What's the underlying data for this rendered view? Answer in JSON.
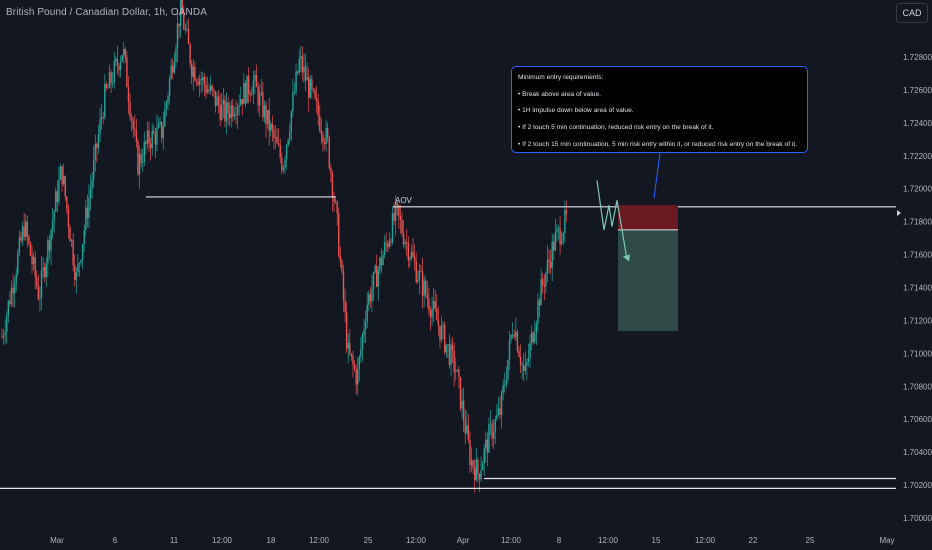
{
  "header": {
    "symbol_title": "British Pound / Canadian Dollar, 1h, OANDA",
    "currency_button": "CAD"
  },
  "annotations": {
    "aov_label": "AOV",
    "note_lines": [
      "Minimum entry requirements:",
      "• Break above area of value.",
      "• 1H impulse down below area of value.",
      "• If 2 touch 5 min continuation, reduced risk entry on the break of it.",
      "• If 2 touch 15 min continuation, 5 min risk entry within it, or reduced risk entry on the break of it."
    ]
  },
  "colors": {
    "background": "#131722",
    "up": "#26a69a",
    "down": "#ef5350",
    "stop_zone": "#6b1a22",
    "target_zone": "#2e4a47",
    "note_border": "#2962ff",
    "path_arrow": "#7ec7b3"
  },
  "chart_data": {
    "type": "candlestick",
    "title": "British Pound / Canadian Dollar, 1h, OANDA",
    "x_tick_labels": [
      "Mar",
      "6",
      "11",
      "12:00",
      "18",
      "12:00",
      "25",
      "12:00",
      "Apr",
      "12:00",
      "8",
      "12:00",
      "15",
      "12:00",
      "22",
      "25",
      "May"
    ],
    "y_tick_labels": [
      "1.70000",
      "1.70200",
      "1.70400",
      "1.70600",
      "1.70800",
      "1.71000",
      "1.71200",
      "1.71400",
      "1.71600",
      "1.71800",
      "1.72000",
      "1.72200",
      "1.72400",
      "1.72600",
      "1.72800"
    ],
    "ylim": [
      1.6995,
      1.7295
    ],
    "price_path": [
      {
        "t": 0.0,
        "p": 1.711
      },
      {
        "t": 1.2,
        "p": 1.7178
      },
      {
        "t": 2.0,
        "p": 1.7135
      },
      {
        "t": 3.2,
        "p": 1.7212
      },
      {
        "t": 4.0,
        "p": 1.7145
      },
      {
        "t": 5.5,
        "p": 1.7255
      },
      {
        "t": 6.5,
        "p": 1.7285
      },
      {
        "t": 7.3,
        "p": 1.7215
      },
      {
        "t": 7.9,
        "p": 1.723
      },
      {
        "t": 8.6,
        "p": 1.7235
      },
      {
        "t": 9.6,
        "p": 1.731
      },
      {
        "t": 10.2,
        "p": 1.7275
      },
      {
        "t": 12.0,
        "p": 1.7245
      },
      {
        "t": 13.5,
        "p": 1.7265
      },
      {
        "t": 15.1,
        "p": 1.7215
      },
      {
        "t": 16.0,
        "p": 1.7278
      },
      {
        "t": 17.5,
        "p": 1.7228
      },
      {
        "t": 18.0,
        "p": 1.718
      },
      {
        "t": 18.6,
        "p": 1.71
      },
      {
        "t": 19.1,
        "p": 1.7085
      },
      {
        "t": 19.6,
        "p": 1.713
      },
      {
        "t": 20.2,
        "p": 1.715
      },
      {
        "t": 21.2,
        "p": 1.7185
      },
      {
        "t": 22.3,
        "p": 1.715
      },
      {
        "t": 23.2,
        "p": 1.7125
      },
      {
        "t": 24.4,
        "p": 1.709
      },
      {
        "t": 25.2,
        "p": 1.7035
      },
      {
        "t": 25.6,
        "p": 1.7027
      },
      {
        "t": 26.2,
        "p": 1.705
      },
      {
        "t": 26.8,
        "p": 1.7065
      },
      {
        "t": 27.5,
        "p": 1.712
      },
      {
        "t": 28.1,
        "p": 1.7085
      },
      {
        "t": 28.9,
        "p": 1.7135
      },
      {
        "t": 29.7,
        "p": 1.7168
      },
      {
        "t": 30.4,
        "p": 1.7182
      }
    ],
    "levels": [
      {
        "name": "AOV",
        "price": 1.7189
      },
      {
        "name": "support-swing",
        "price": 1.7195
      },
      {
        "name": "low-line",
        "price": 1.7024
      },
      {
        "name": "bottom-line",
        "price": 1.7018
      }
    ],
    "position": {
      "type": "short",
      "entry": 1.7175,
      "stop": 1.719,
      "target": 1.71135
    },
    "grid": false
  }
}
